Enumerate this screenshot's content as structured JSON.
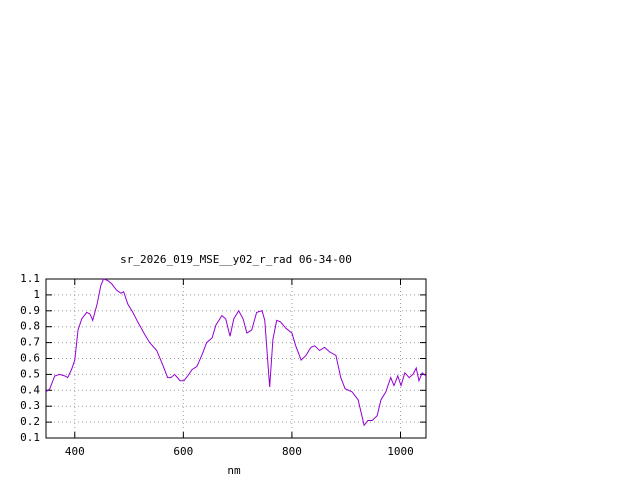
{
  "chart_data": {
    "type": "line",
    "title": "sr_2026_019_MSE__y02_r_rad 06-34-00",
    "xlabel": "nm",
    "x": [
      347,
      354,
      363,
      372,
      382,
      387,
      394,
      400,
      406,
      413,
      422,
      428,
      433,
      441,
      448,
      453,
      461,
      468,
      477,
      485,
      490,
      498,
      507,
      516,
      529,
      538,
      551,
      562,
      571,
      577,
      584,
      594,
      601,
      608,
      616,
      625,
      634,
      643,
      653,
      660,
      671,
      678,
      686,
      693,
      702,
      710,
      717,
      726,
      735,
      745,
      750,
      756,
      759,
      765,
      772,
      779,
      789,
      800,
      807,
      817,
      826,
      835,
      842,
      851,
      860,
      870,
      881,
      890,
      898,
      911,
      922,
      933,
      940,
      948,
      957,
      964,
      973,
      982,
      988,
      995,
      1001,
      1008,
      1016,
      1023,
      1029,
      1034,
      1040,
      1047
    ],
    "series": [
      {
        "color": "#9400d3",
        "values": [
          0.39,
          0.41,
          0.49,
          0.5,
          0.49,
          0.48,
          0.53,
          0.59,
          0.78,
          0.85,
          0.89,
          0.88,
          0.84,
          0.94,
          1.06,
          1.1,
          1.09,
          1.07,
          1.03,
          1.01,
          1.02,
          0.94,
          0.89,
          0.83,
          0.75,
          0.7,
          0.65,
          0.56,
          0.48,
          0.48,
          0.5,
          0.46,
          0.46,
          0.49,
          0.53,
          0.55,
          0.62,
          0.7,
          0.73,
          0.81,
          0.87,
          0.85,
          0.74,
          0.85,
          0.9,
          0.85,
          0.76,
          0.78,
          0.89,
          0.9,
          0.84,
          0.56,
          0.42,
          0.72,
          0.84,
          0.83,
          0.79,
          0.76,
          0.68,
          0.59,
          0.62,
          0.67,
          0.68,
          0.65,
          0.67,
          0.64,
          0.62,
          0.48,
          0.41,
          0.39,
          0.34,
          0.18,
          0.21,
          0.21,
          0.24,
          0.34,
          0.39,
          0.48,
          0.43,
          0.49,
          0.43,
          0.51,
          0.48,
          0.5,
          0.54,
          0.46,
          0.51,
          0.49
        ]
      }
    ],
    "xlim": [
      347,
      1047
    ],
    "xticks": [
      400,
      600,
      800,
      1000
    ],
    "ylim": [
      0.1,
      1.1
    ],
    "yticks": [
      0.1,
      0.2,
      0.3,
      0.4,
      0.5,
      0.6,
      0.7,
      0.8,
      0.9,
      1,
      1.1
    ],
    "grid": true
  }
}
